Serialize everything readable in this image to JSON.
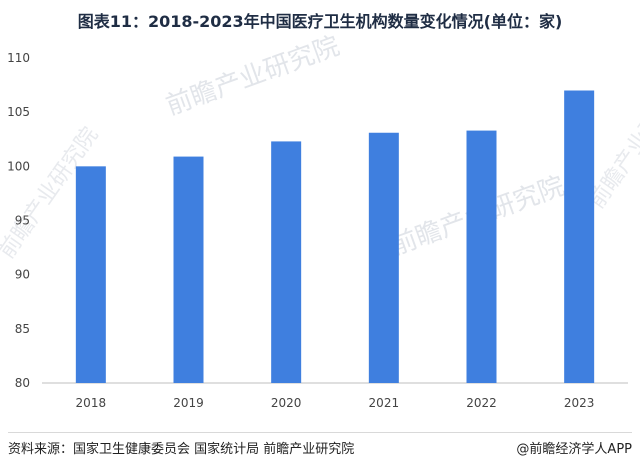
{
  "chart_data": {
    "type": "bar",
    "title": "图表11：2018-2023年中国医疗卫生机构数量变化情况(单位：家)",
    "categories": [
      "2018",
      "2019",
      "2020",
      "2021",
      "2022",
      "2023"
    ],
    "values": [
      100.0,
      100.9,
      102.3,
      103.1,
      103.3,
      107.0
    ],
    "ylim": [
      80,
      110
    ],
    "yticks": [
      80,
      85,
      90,
      95,
      100,
      105,
      110
    ],
    "bar_color": "#3f7fdf",
    "grid": false,
    "legend": "none"
  },
  "footer": {
    "source": "资料来源：国家卫生健康委员会 国家统计局 前瞻产业研究院",
    "credit": "@前瞻经济学人APP"
  },
  "watermark": {
    "text": "前瞻产业研究院"
  }
}
